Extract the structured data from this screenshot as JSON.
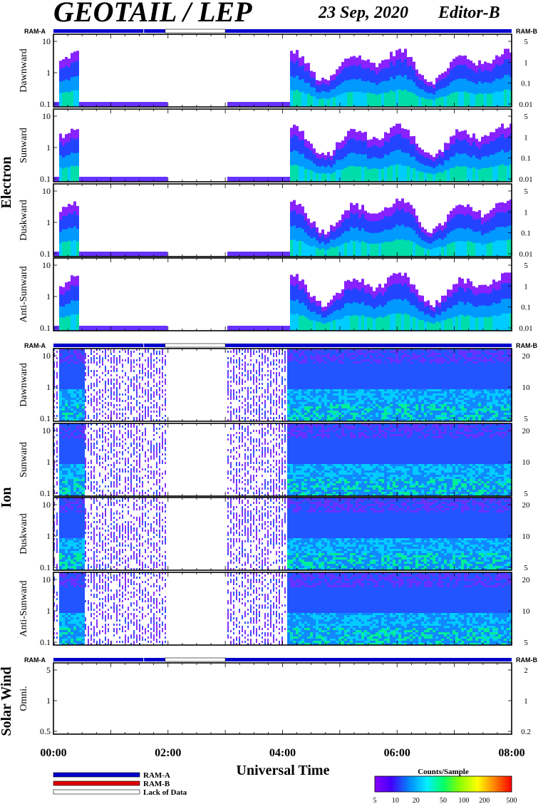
{
  "header": {
    "title": "GEOTAIL / LEP",
    "date": "23 Sep, 2020",
    "editor": "Editor-B"
  },
  "labels": {
    "ram_a": "RAM-A",
    "ram_b": "RAM-B",
    "lack": "Lack of Data",
    "xlabel": "Universal Time",
    "colorbar_title": "Counts/Sample"
  },
  "colors": {
    "ram_a": "#0000cc",
    "ram_b": "#dd0000",
    "lack": "#ffffff"
  },
  "chart_data": {
    "type": "heatmap",
    "xlabel": "Universal Time",
    "x_ticks": [
      "00:00",
      "02:00",
      "04:00",
      "06:00",
      "08:00"
    ],
    "xlim_hours": [
      0,
      8
    ],
    "groups": [
      {
        "name": "Electron",
        "panels": [
          {
            "label": "Dawnward",
            "left_ticks": [
              "10",
              "1",
              "0.1"
            ],
            "right_ticks": [
              "5",
              "1",
              "0.1",
              "0.01"
            ]
          },
          {
            "label": "Sunward",
            "left_ticks": [
              "10",
              "1",
              "0.1"
            ],
            "right_ticks": [
              "5",
              "1",
              "0.1",
              "0.01"
            ]
          },
          {
            "label": "Duskward",
            "left_ticks": [
              "10",
              "1",
              "0.1"
            ],
            "right_ticks": [
              "5",
              "1",
              "0.1",
              "0.01"
            ]
          },
          {
            "label": "Anti-Sunward",
            "left_ticks": [
              "10",
              "1",
              "0.1"
            ],
            "right_ticks": [
              "5",
              "1",
              "0.1",
              "0.01"
            ]
          }
        ],
        "data_segments_hours": [
          [
            0.0,
            1.95
          ],
          [
            3.0,
            8.0
          ]
        ],
        "active_hours": [
          [
            0.05,
            0.42
          ],
          [
            4.1,
            8.0
          ]
        ]
      },
      {
        "name": "Ion",
        "panels": [
          {
            "label": "Dawnward",
            "left_ticks": [
              "10",
              "1",
              "0.1"
            ],
            "right_ticks": [
              "20",
              "10",
              "5"
            ]
          },
          {
            "label": "Sunward",
            "left_ticks": [
              "10",
              "1",
              "0.1"
            ],
            "right_ticks": [
              "20",
              "10",
              "5"
            ]
          },
          {
            "label": "Duskward",
            "left_ticks": [
              "10",
              "1",
              "0.1"
            ],
            "right_ticks": [
              "20",
              "10",
              "5"
            ]
          },
          {
            "label": "Anti-Sunward",
            "left_ticks": [
              "10",
              "1",
              "0.1"
            ],
            "right_ticks": [
              "20",
              "10",
              "5"
            ]
          }
        ],
        "data_segments_hours": [
          [
            0.0,
            1.95
          ],
          [
            3.0,
            8.0
          ]
        ],
        "active_hours": [
          [
            0.05,
            0.5
          ],
          [
            4.05,
            8.0
          ]
        ]
      },
      {
        "name": "Solar Wind",
        "panels": [
          {
            "label": "Omni.",
            "left_ticks": [
              "5",
              "1",
              "0.5"
            ],
            "right_ticks": [
              "2",
              "1",
              "0.2"
            ]
          }
        ],
        "data_segments_hours": [],
        "active_hours": []
      }
    ],
    "mode_bar_hours": {
      "ram_a": [
        [
          0.0,
          1.95
        ],
        [
          3.0,
          8.0
        ]
      ],
      "lack": [
        [
          1.95,
          3.0
        ]
      ]
    },
    "colorbar": {
      "title": "Counts/Sample",
      "ticks": [
        "5",
        "10",
        "20",
        "50",
        "100",
        "200",
        "500"
      ]
    }
  }
}
